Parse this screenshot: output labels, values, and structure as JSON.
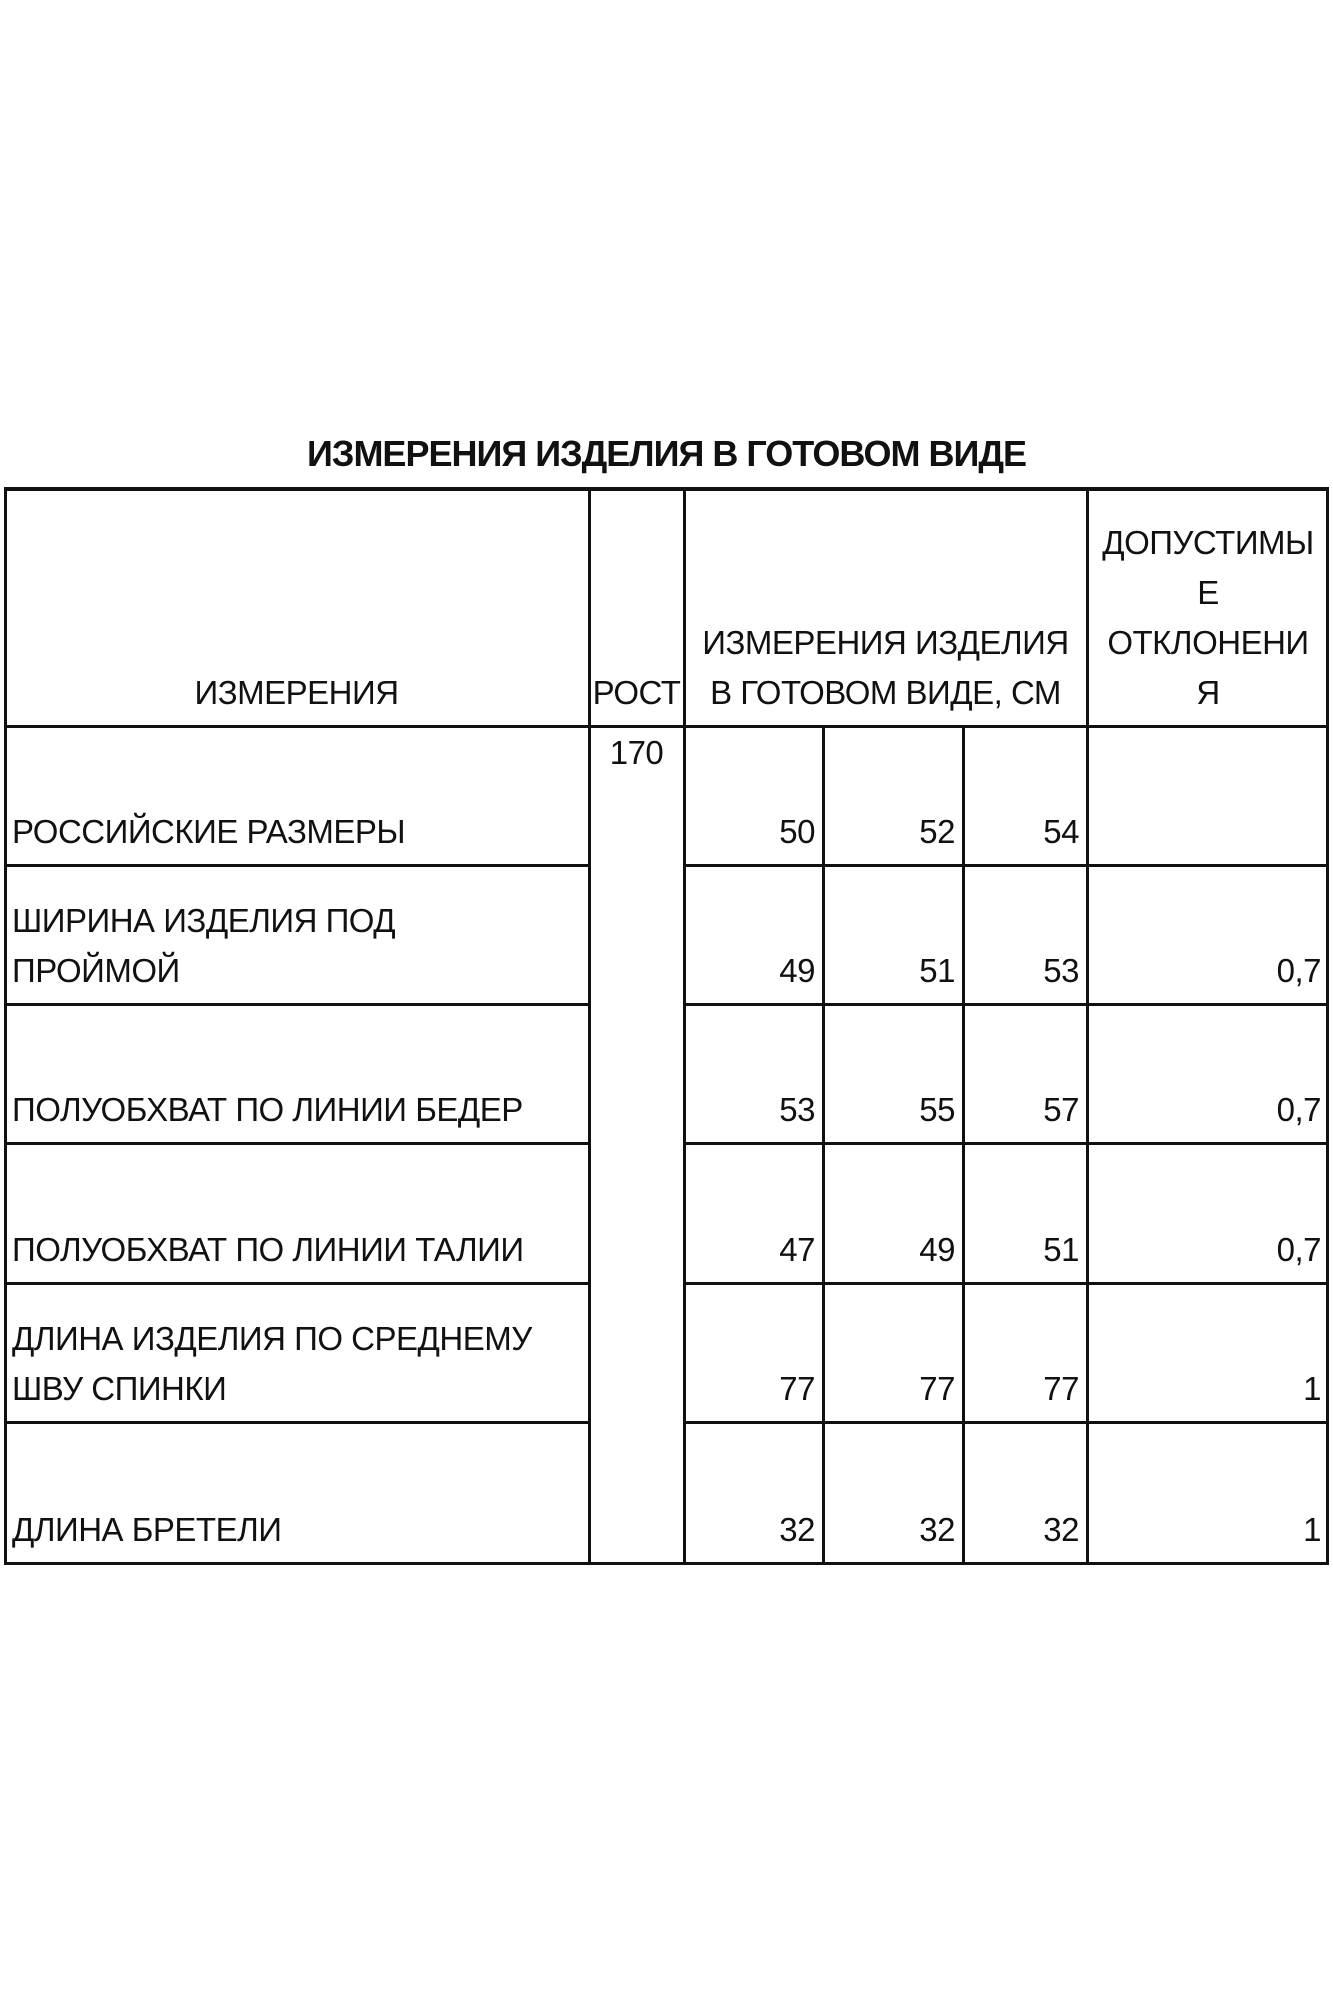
{
  "title": "ИЗМЕРЕНИЯ ИЗДЕЛИЯ В ГОТОВОМ ВИДЕ",
  "header": {
    "measurement": "ИЗМЕРЕНИЯ",
    "height": "РОСТ",
    "values": [
      "ИЗМЕРЕНИЯ ИЗДЕЛИЯ",
      "В ГОТОВОМ ВИДЕ, СМ"
    ],
    "tolerance": [
      "ДОПУСТИМЫ",
      "Е",
      "ОТКЛОНЕНИ",
      "Я"
    ]
  },
  "height_value": "170",
  "rows": [
    {
      "label": [
        "РОССИЙСКИЕ РАЗМЕРЫ"
      ],
      "values": [
        "50",
        "52",
        "54"
      ],
      "tolerance": ""
    },
    {
      "label": [
        "ШИРИНА ИЗДЕЛИЯ ПОД",
        "ПРОЙМОЙ"
      ],
      "values": [
        "49",
        "51",
        "53"
      ],
      "tolerance": "0,7"
    },
    {
      "label": [
        "ПОЛУОБХВАТ ПО ЛИНИИ БЕДЕР"
      ],
      "values": [
        "53",
        "55",
        "57"
      ],
      "tolerance": "0,7"
    },
    {
      "label": [
        "ПОЛУОБХВАТ ПО ЛИНИИ ТАЛИИ"
      ],
      "values": [
        "47",
        "49",
        "51"
      ],
      "tolerance": "0,7"
    },
    {
      "label": [
        "ДЛИНА ИЗДЕЛИЯ ПО СРЕДНЕМУ",
        "ШВУ СПИНКИ"
      ],
      "values": [
        "77",
        "77",
        "77"
      ],
      "tolerance": "1"
    },
    {
      "label": [
        "ДЛИНА БРЕТЕЛИ"
      ],
      "values": [
        "32",
        "32",
        "32"
      ],
      "tolerance": "1"
    }
  ]
}
